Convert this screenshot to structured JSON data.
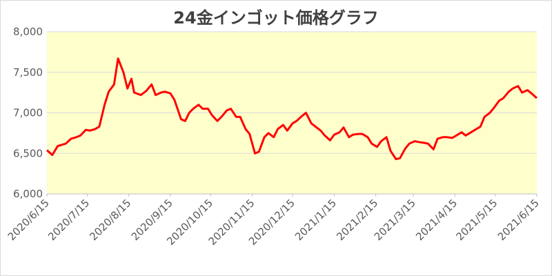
{
  "chart_data": {
    "type": "line",
    "title": "24金インゴット価格グラフ",
    "x": [
      "2020/6/15",
      "2020/6/19",
      "2020/6/23",
      "2020/6/29",
      "2020/7/3",
      "2020/7/7",
      "2020/7/10",
      "2020/7/14",
      "2020/7/17",
      "2020/7/21",
      "2020/7/24",
      "2020/7/28",
      "2020/7/31",
      "2020/8/4",
      "2020/8/7",
      "2020/8/11",
      "2020/8/14",
      "2020/8/17",
      "2020/8/19",
      "2020/8/24",
      "2020/8/28",
      "2020/9/1",
      "2020/9/4",
      "2020/9/8",
      "2020/9/11",
      "2020/9/15",
      "2020/9/18",
      "2020/9/23",
      "2020/9/26",
      "2020/9/29",
      "2020/10/2",
      "2020/10/6",
      "2020/10/9",
      "2020/10/13",
      "2020/10/16",
      "2020/10/20",
      "2020/10/23",
      "2020/10/27",
      "2020/10/30",
      "2020/11/3",
      "2020/11/6",
      "2020/11/10",
      "2020/11/13",
      "2020/11/17",
      "2020/11/20",
      "2020/11/24",
      "2020/11/27",
      "2020/12/1",
      "2020/12/4",
      "2020/12/8",
      "2020/12/11",
      "2020/12/15",
      "2020/12/18",
      "2020/12/22",
      "2020/12/25",
      "2020/12/29",
      "2021/1/5",
      "2021/1/8",
      "2021/1/12",
      "2021/1/15",
      "2021/1/19",
      "2021/1/22",
      "2021/1/26",
      "2021/1/29",
      "2021/2/2",
      "2021/2/5",
      "2021/2/9",
      "2021/2/12",
      "2021/2/16",
      "2021/2/19",
      "2021/2/23",
      "2021/2/26",
      "2021/3/2",
      "2021/3/5",
      "2021/3/9",
      "2021/3/12",
      "2021/3/16",
      "2021/3/19",
      "2021/3/23",
      "2021/3/26",
      "2021/3/30",
      "2021/4/2",
      "2021/4/6",
      "2021/4/9",
      "2021/4/13",
      "2021/4/16",
      "2021/4/20",
      "2021/4/23",
      "2021/4/27",
      "2021/4/30",
      "2021/5/4",
      "2021/5/7",
      "2021/5/11",
      "2021/5/14",
      "2021/5/18",
      "2021/5/21",
      "2021/5/25",
      "2021/5/28",
      "2021/6/1",
      "2021/6/4",
      "2021/6/8",
      "2021/6/11",
      "2021/6/15"
    ],
    "series": [
      {
        "color": "#ff0000",
        "values": [
          6540,
          6480,
          6590,
          6620,
          6680,
          6700,
          6720,
          6790,
          6780,
          6800,
          6830,
          7100,
          7260,
          7350,
          7670,
          7500,
          7300,
          7420,
          7250,
          7220,
          7270,
          7350,
          7220,
          7250,
          7260,
          7240,
          7160,
          6920,
          6900,
          7000,
          7050,
          7100,
          7050,
          7050,
          6970,
          6900,
          6950,
          7030,
          7050,
          6950,
          6950,
          6800,
          6740,
          6500,
          6520,
          6700,
          6750,
          6700,
          6800,
          6850,
          6780,
          6870,
          6900,
          6960,
          7000,
          6870,
          6780,
          6720,
          6660,
          6730,
          6760,
          6820,
          6700,
          6730,
          6740,
          6740,
          6700,
          6620,
          6580,
          6650,
          6700,
          6530,
          6430,
          6440,
          6560,
          6620,
          6650,
          6640,
          6630,
          6620,
          6550,
          6680,
          6700,
          6700,
          6690,
          6720,
          6760,
          6720,
          6760,
          6790,
          6830,
          6950,
          7000,
          7060,
          7150,
          7180,
          7260,
          7300,
          7330,
          7250,
          7280,
          7240,
          7180
        ]
      }
    ],
    "xlim": [
      "2020/6/15",
      "2021/6/15"
    ],
    "xticks": [
      "2020/6/15",
      "2020/7/15",
      "2020/8/15",
      "2020/9/15",
      "2020/10/15",
      "2020/11/15",
      "2020/12/15",
      "2021/1/15",
      "2021/2/15",
      "2021/3/15",
      "2021/4/15",
      "2021/5/15",
      "2021/6/15"
    ],
    "ylim": [
      6000,
      8000
    ],
    "yticks": [
      {
        "value": 6000,
        "label": "6,000"
      },
      {
        "value": 6500,
        "label": "6,500"
      },
      {
        "value": 7000,
        "label": "7,000"
      },
      {
        "value": 7500,
        "label": "7,500"
      },
      {
        "value": 8000,
        "label": "8,000"
      }
    ],
    "grid": true
  }
}
